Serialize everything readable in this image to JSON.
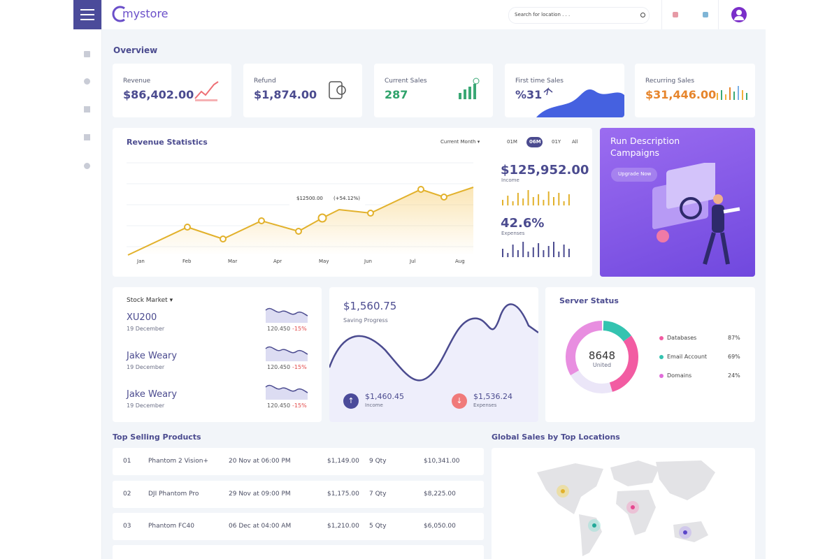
{
  "header": {
    "logo": "mystore",
    "search_placeholder": "Search for location . . ."
  },
  "overview": {
    "title": "Overview",
    "cards": [
      {
        "label": "Revenue",
        "value": "$86,402.00"
      },
      {
        "label": "Refund",
        "value": "$1,874.00"
      },
      {
        "label": "Current Sales",
        "value": "287"
      },
      {
        "label": "First time Sales",
        "value": "%31"
      },
      {
        "label": "Recurring Sales",
        "value": "$31,446.00"
      }
    ]
  },
  "revenue_statistics": {
    "title": "Revenue Statistics",
    "filter": "Current Month",
    "ranges": [
      "01M",
      "06M",
      "01Y",
      "All"
    ],
    "months": [
      "Jan",
      "Feb",
      "Mar",
      "Apr",
      "May",
      "Jun",
      "Jul",
      "Aug"
    ],
    "tooltip": {
      "value": "$12500.00",
      "change": "(+54.12%)"
    },
    "income": {
      "value": "$125,952.00",
      "label": "Income"
    },
    "expenses": {
      "value": "42.6%",
      "label": "Expenses"
    }
  },
  "promo": {
    "title_line1": "Run Description",
    "title_line2": "Campaigns",
    "button": "Upgrade Now"
  },
  "stock_market": {
    "title": "Stock Market",
    "items": [
      {
        "name": "XU200",
        "date": "19 December",
        "price": "120.450",
        "change": "-15%"
      },
      {
        "name": "Jake Weary",
        "date": "19 December",
        "price": "120.450",
        "change": "-15%"
      },
      {
        "name": "Jake Weary",
        "date": "19 December",
        "price": "120.450",
        "change": "-15%"
      }
    ]
  },
  "saving": {
    "value": "$1,560.75",
    "label": "Saving Progress",
    "income": {
      "value": "$1,460.45",
      "label": "Income"
    },
    "expenses": {
      "value": "$1,536.24",
      "label": "Expenses"
    }
  },
  "server_status": {
    "title": "Server Status",
    "center_value": "8648",
    "center_label": "United",
    "legend": [
      {
        "name": "Databases",
        "value": "87%"
      },
      {
        "name": "Email Account",
        "value": "69%"
      },
      {
        "name": "Domains",
        "value": "24%"
      }
    ]
  },
  "top_selling": {
    "title": "Top Selling Products",
    "rows": [
      {
        "no": "01",
        "name": "Phantom 2 Vision+",
        "date": "20 Nov at 06:00 PM",
        "price": "$1,149.00",
        "qty": "9 Qty",
        "total": "$10,341.00"
      },
      {
        "no": "02",
        "name": "DJI Phantom Pro",
        "date": "29 Nov at 09:00 PM",
        "price": "$1,175.00",
        "qty": "7 Qty",
        "total": "$8,225.00"
      },
      {
        "no": "03",
        "name": "Phantom FC40",
        "date": "06 Dec at 04:00 AM",
        "price": "$1,210.00",
        "qty": "5 Qty",
        "total": "$6,050.00"
      }
    ]
  },
  "global_sales": {
    "title": "Global Sales by Top Locations"
  }
}
